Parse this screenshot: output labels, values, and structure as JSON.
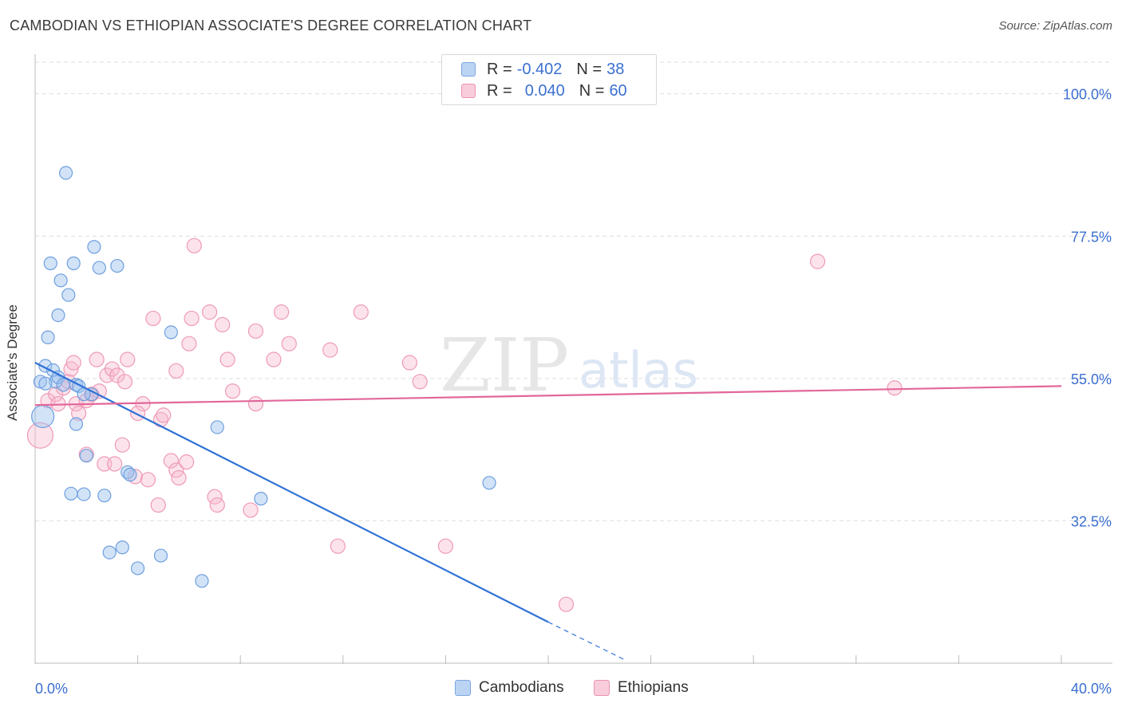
{
  "header": {
    "title": "CAMBODIAN VS ETHIOPIAN ASSOCIATE'S DEGREE CORRELATION CHART",
    "source": "Source: ZipAtlas.com"
  },
  "watermark": {
    "zip": "ZIP",
    "atlas": "atlas"
  },
  "legend": {
    "rows": [
      {
        "r_label": "R =",
        "r_value": "-0.402",
        "n_label": "N =",
        "n_value": "38",
        "color": "#a9c8f0",
        "border": "#7aa6e0"
      },
      {
        "r_label": "R =",
        "r_value": "0.040",
        "n_label": "N =",
        "n_value": "60",
        "color": "#f7bfd0",
        "border": "#ea93b0"
      }
    ]
  },
  "bottom_legend": {
    "cambodians": "Cambodians",
    "ethiopians": "Ethiopians"
  },
  "colors": {
    "blue_fill": "rgba(155,192,240,0.45)",
    "blue_stroke": "#6e9fde",
    "blue_line": "#2f72d6",
    "pink_fill": "rgba(247,186,206,0.40)",
    "pink_stroke": "#ee9ab6",
    "pink_line": "#e2679a",
    "tick_text": "#3b6fd1",
    "grid": "#dedede"
  },
  "chart_data": {
    "type": "scatter",
    "title": "CAMBODIAN VS ETHIOPIAN ASSOCIATE'S DEGREE CORRELATION CHART",
    "xlabel": "",
    "ylabel": "Associate's Degree",
    "xlim": [
      0,
      40
    ],
    "ylim": [
      10,
      105
    ],
    "x_tick_labels": [
      "0.0%",
      "40.0%"
    ],
    "y_ticks": [
      32.5,
      55.0,
      77.5,
      100.0
    ],
    "y_tick_labels": [
      "32.5%",
      "55.0%",
      "77.5%",
      "100.0%"
    ],
    "grid": true,
    "series": [
      {
        "name": "Cambodians",
        "r": -0.402,
        "n": 38,
        "points": [
          [
            0.3,
            49,
            14
          ],
          [
            0.2,
            54.5,
            8
          ],
          [
            0.4,
            57,
            8
          ],
          [
            0.7,
            56.3,
            8
          ],
          [
            0.8,
            54.5,
            8
          ],
          [
            0.9,
            55.2,
            8
          ],
          [
            1.6,
            54,
            8
          ],
          [
            1.7,
            53.8,
            8
          ],
          [
            2.2,
            52.5,
            8
          ],
          [
            0.5,
            61.5,
            8
          ],
          [
            0.9,
            65,
            8
          ],
          [
            1.0,
            70.5,
            8
          ],
          [
            1.3,
            68.2,
            8
          ],
          [
            0.6,
            73.2,
            8
          ],
          [
            1.5,
            73.2,
            8
          ],
          [
            1.2,
            87.5,
            8
          ],
          [
            2.3,
            75.8,
            8
          ],
          [
            2.5,
            72.5,
            8
          ],
          [
            3.2,
            72.8,
            8
          ],
          [
            5.3,
            62.3,
            8
          ],
          [
            1.6,
            47.8,
            8
          ],
          [
            2.0,
            42.8,
            8
          ],
          [
            3.6,
            40.2,
            8
          ],
          [
            3.7,
            39.8,
            8
          ],
          [
            1.4,
            36.8,
            8
          ],
          [
            1.9,
            36.7,
            8
          ],
          [
            2.7,
            36.5,
            8
          ],
          [
            7.1,
            47.3,
            8
          ],
          [
            8.8,
            36,
            8
          ],
          [
            17.7,
            38.5,
            8
          ],
          [
            3.4,
            28.3,
            8
          ],
          [
            2.9,
            27.5,
            8
          ],
          [
            4.9,
            27.0,
            8
          ],
          [
            4.0,
            25.0,
            8
          ],
          [
            6.5,
            23.0,
            8
          ],
          [
            0.4,
            54.2,
            8
          ],
          [
            1.1,
            54.0,
            8
          ],
          [
            1.9,
            52.5,
            8
          ]
        ],
        "trend": {
          "x0": 0.0,
          "y0": 57.5,
          "x1": 20.0,
          "y1": 16.5,
          "dash_x1": 23.0,
          "dash_y1": 10.5
        }
      },
      {
        "name": "Ethiopians",
        "r": 0.04,
        "n": 60,
        "points": [
          [
            0.2,
            46,
            16
          ],
          [
            0.5,
            51.5,
            9
          ],
          [
            0.8,
            52.5,
            9
          ],
          [
            0.9,
            51,
            9
          ],
          [
            1.1,
            53.5,
            9
          ],
          [
            1.3,
            54.5,
            9
          ],
          [
            1.4,
            56.5,
            9
          ],
          [
            1.5,
            57.5,
            9
          ],
          [
            1.6,
            51,
            9
          ],
          [
            1.7,
            49.5,
            9
          ],
          [
            2.0,
            51.5,
            9
          ],
          [
            2.2,
            52.5,
            9
          ],
          [
            2.4,
            58,
            9
          ],
          [
            2.5,
            53,
            9
          ],
          [
            2.8,
            55.5,
            9
          ],
          [
            3.0,
            56.5,
            9
          ],
          [
            3.2,
            55.5,
            9
          ],
          [
            3.5,
            54.5,
            9
          ],
          [
            3.6,
            58,
            9
          ],
          [
            4.2,
            51,
            9
          ],
          [
            4.0,
            49.5,
            9
          ],
          [
            4.9,
            48.5,
            9
          ],
          [
            5.0,
            49.2,
            9
          ],
          [
            5.5,
            56.2,
            9
          ],
          [
            6.0,
            60.5,
            9
          ],
          [
            4.6,
            64.5,
            9
          ],
          [
            6.1,
            64.5,
            9
          ],
          [
            6.8,
            65.5,
            9
          ],
          [
            7.3,
            63.5,
            9
          ],
          [
            7.5,
            58,
            9
          ],
          [
            6.2,
            76,
            9
          ],
          [
            8.6,
            62.5,
            9
          ],
          [
            9.3,
            58,
            9
          ],
          [
            9.6,
            65.5,
            9
          ],
          [
            9.9,
            60.5,
            9
          ],
          [
            11.5,
            59.5,
            9
          ],
          [
            12.7,
            65.5,
            9
          ],
          [
            14.6,
            57.5,
            9
          ],
          [
            15.0,
            54.5,
            9
          ],
          [
            7.7,
            53,
            9
          ],
          [
            8.6,
            51,
            9
          ],
          [
            2.0,
            43,
            9
          ],
          [
            2.7,
            41.5,
            9
          ],
          [
            3.1,
            41.5,
            9
          ],
          [
            3.4,
            44.5,
            9
          ],
          [
            3.9,
            39.5,
            9
          ],
          [
            4.4,
            39,
            9
          ],
          [
            5.3,
            42,
            9
          ],
          [
            5.5,
            40.5,
            9
          ],
          [
            5.9,
            41.8,
            9
          ],
          [
            5.6,
            39.3,
            9
          ],
          [
            7.0,
            36.3,
            9
          ],
          [
            7.1,
            35,
            9
          ],
          [
            8.4,
            34.2,
            9
          ],
          [
            4.8,
            35,
            9
          ],
          [
            11.8,
            28.5,
            9
          ],
          [
            16.0,
            28.5,
            9
          ],
          [
            20.7,
            19.3,
            9
          ],
          [
            30.5,
            73.5,
            9
          ],
          [
            33.5,
            53.5,
            9
          ]
        ],
        "trend": {
          "x0": 0.0,
          "y0": 50.8,
          "x1": 40.0,
          "y1": 53.8
        }
      }
    ]
  }
}
